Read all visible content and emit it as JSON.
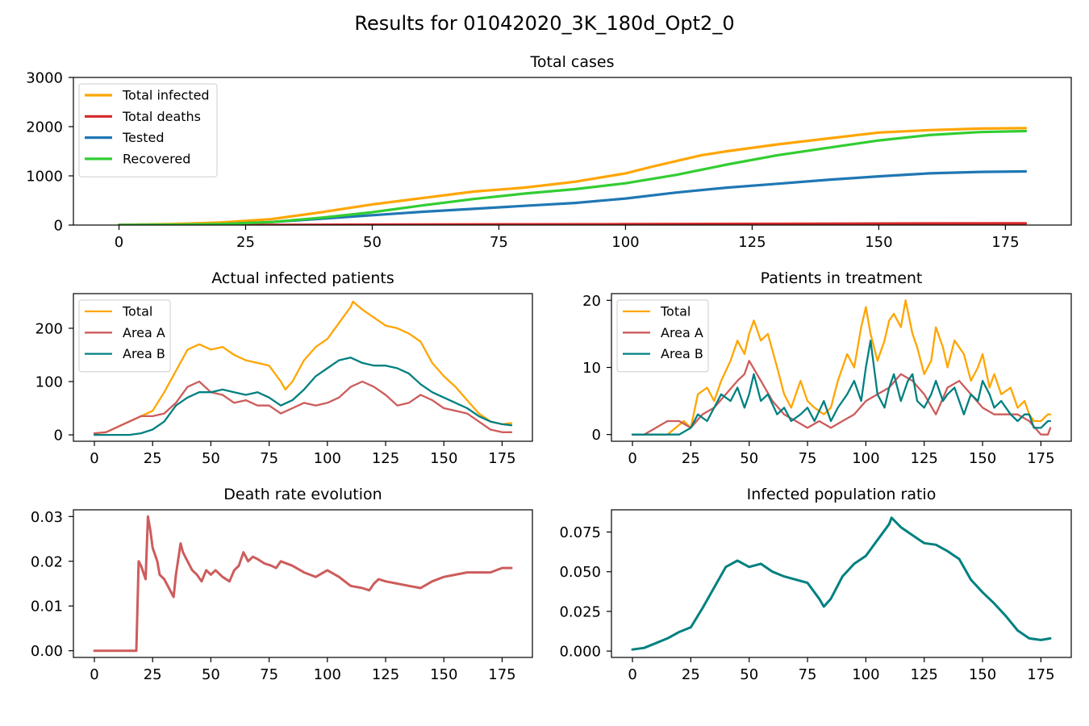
{
  "figure": {
    "title": "Results for 01042020_3K_180d_Opt2_0"
  },
  "chart_data": [
    {
      "type": "line",
      "title": "Total cases",
      "xlabel": "",
      "ylabel": "",
      "xlim": [
        -9,
        188
      ],
      "ylim": [
        0,
        3000
      ],
      "xticks": [
        0,
        25,
        50,
        75,
        100,
        125,
        150,
        175
      ],
      "yticks": [
        0,
        1000,
        2000,
        3000
      ],
      "legend_position": "top-left",
      "grid": false,
      "series": [
        {
          "name": "Total infected",
          "color": "#ffa500",
          "x": [
            0,
            10,
            20,
            30,
            40,
            50,
            60,
            70,
            80,
            90,
            100,
            105,
            110,
            115,
            120,
            130,
            140,
            150,
            160,
            170,
            179
          ],
          "y": [
            5,
            20,
            50,
            120,
            260,
            420,
            550,
            680,
            760,
            880,
            1050,
            1180,
            1300,
            1420,
            1500,
            1640,
            1760,
            1880,
            1930,
            1960,
            1970
          ]
        },
        {
          "name": "Total deaths",
          "color": "#d62728",
          "x": [
            0,
            20,
            30,
            50,
            80,
            100,
            130,
            160,
            179
          ],
          "y": [
            0,
            1,
            3,
            8,
            14,
            18,
            25,
            32,
            35
          ]
        },
        {
          "name": "Tested",
          "color": "#1f77b4",
          "x": [
            0,
            10,
            20,
            30,
            40,
            50,
            60,
            70,
            80,
            90,
            100,
            110,
            120,
            130,
            140,
            150,
            160,
            170,
            179
          ],
          "y": [
            0,
            5,
            20,
            60,
            130,
            200,
            270,
            330,
            390,
            450,
            540,
            660,
            760,
            840,
            920,
            990,
            1050,
            1080,
            1090
          ]
        },
        {
          "name": "Recovered",
          "color": "#32cd32",
          "x": [
            0,
            10,
            20,
            30,
            40,
            50,
            60,
            70,
            80,
            90,
            100,
            110,
            120,
            130,
            140,
            150,
            160,
            170,
            179
          ],
          "y": [
            0,
            5,
            20,
            60,
            150,
            260,
            400,
            530,
            640,
            730,
            850,
            1020,
            1230,
            1420,
            1570,
            1720,
            1830,
            1890,
            1910
          ]
        }
      ]
    },
    {
      "type": "line",
      "title": "Actual infected patients",
      "xlabel": "",
      "ylabel": "",
      "xlim": [
        -9,
        188
      ],
      "ylim": [
        -12,
        265
      ],
      "xticks": [
        0,
        25,
        50,
        75,
        100,
        125,
        150,
        175
      ],
      "yticks": [
        0,
        100,
        200
      ],
      "legend_position": "top-left",
      "grid": false,
      "series": [
        {
          "name": "Total",
          "color": "#ffa500",
          "x": [
            0,
            5,
            10,
            15,
            20,
            25,
            30,
            35,
            40,
            45,
            50,
            55,
            60,
            65,
            70,
            75,
            80,
            82,
            85,
            90,
            95,
            100,
            105,
            110,
            111,
            115,
            120,
            125,
            130,
            135,
            140,
            145,
            150,
            155,
            160,
            165,
            170,
            175,
            179
          ],
          "y": [
            3,
            5,
            15,
            25,
            35,
            45,
            80,
            120,
            160,
            170,
            160,
            165,
            150,
            140,
            135,
            130,
            100,
            85,
            100,
            140,
            165,
            180,
            210,
            240,
            250,
            235,
            220,
            205,
            200,
            190,
            175,
            135,
            110,
            90,
            65,
            40,
            25,
            20,
            22
          ]
        },
        {
          "name": "Area A",
          "color": "#cd5c5c",
          "x": [
            0,
            5,
            10,
            15,
            20,
            25,
            30,
            35,
            40,
            45,
            50,
            55,
            60,
            65,
            70,
            75,
            80,
            85,
            90,
            95,
            100,
            105,
            110,
            115,
            120,
            125,
            130,
            135,
            140,
            145,
            150,
            155,
            160,
            165,
            170,
            175,
            179
          ],
          "y": [
            3,
            5,
            15,
            25,
            35,
            35,
            40,
            60,
            90,
            100,
            80,
            75,
            60,
            65,
            55,
            55,
            40,
            50,
            60,
            55,
            60,
            70,
            90,
            100,
            90,
            75,
            55,
            60,
            75,
            65,
            50,
            45,
            40,
            25,
            10,
            5,
            5
          ]
        },
        {
          "name": "Area B",
          "color": "#008080",
          "x": [
            0,
            5,
            10,
            15,
            20,
            25,
            30,
            35,
            40,
            45,
            50,
            55,
            60,
            65,
            70,
            75,
            80,
            85,
            90,
            95,
            100,
            105,
            110,
            115,
            120,
            125,
            130,
            135,
            140,
            145,
            150,
            155,
            160,
            165,
            170,
            175,
            179
          ],
          "y": [
            0,
            0,
            0,
            0,
            3,
            10,
            25,
            55,
            70,
            80,
            80,
            85,
            80,
            75,
            80,
            70,
            55,
            65,
            85,
            110,
            125,
            140,
            145,
            135,
            130,
            130,
            125,
            115,
            95,
            80,
            70,
            60,
            50,
            35,
            25,
            20,
            18
          ]
        }
      ]
    },
    {
      "type": "line",
      "title": "Patients in treatment",
      "xlabel": "",
      "ylabel": "",
      "xlim": [
        -9,
        188
      ],
      "ylim": [
        -1,
        21
      ],
      "xticks": [
        0,
        25,
        50,
        75,
        100,
        125,
        150,
        175
      ],
      "yticks": [
        0,
        10,
        20
      ],
      "legend_position": "top-left",
      "grid": false,
      "series": [
        {
          "name": "Total",
          "color": "#ffa500",
          "x": [
            0,
            15,
            22,
            25,
            28,
            32,
            35,
            38,
            42,
            45,
            48,
            50,
            52,
            55,
            58,
            62,
            65,
            68,
            72,
            75,
            78,
            82,
            85,
            88,
            92,
            95,
            98,
            100,
            102,
            105,
            108,
            110,
            112,
            115,
            117,
            120,
            122,
            125,
            128,
            130,
            133,
            135,
            138,
            142,
            145,
            148,
            150,
            153,
            155,
            158,
            162,
            165,
            168,
            170,
            172,
            175,
            178,
            179
          ],
          "y": [
            0,
            0,
            2,
            1,
            6,
            7,
            5,
            8,
            11,
            14,
            12,
            15,
            17,
            14,
            15,
            10,
            6,
            4,
            8,
            5,
            4,
            3,
            4,
            8,
            12,
            10,
            16,
            19,
            15,
            11,
            14,
            17,
            18,
            16,
            20,
            15,
            13,
            9,
            11,
            16,
            13,
            10,
            14,
            12,
            8,
            10,
            12,
            7,
            9,
            6,
            7,
            4,
            5,
            3,
            2,
            2,
            3,
            3
          ]
        },
        {
          "name": "Area A",
          "color": "#cd5c5c",
          "x": [
            0,
            5,
            10,
            15,
            20,
            25,
            30,
            35,
            40,
            45,
            48,
            50,
            55,
            60,
            65,
            70,
            75,
            80,
            85,
            90,
            95,
            100,
            105,
            110,
            115,
            120,
            125,
            130,
            135,
            140,
            145,
            150,
            155,
            160,
            165,
            170,
            175,
            178,
            179
          ],
          "y": [
            0,
            0,
            1,
            2,
            2,
            1,
            3,
            4,
            6,
            8,
            9,
            11,
            8,
            5,
            3,
            2,
            1,
            2,
            1,
            2,
            3,
            5,
            6,
            7,
            9,
            8,
            6,
            3,
            7,
            8,
            6,
            4,
            3,
            3,
            3,
            2,
            0,
            0,
            1
          ]
        },
        {
          "name": "Area B",
          "color": "#008080",
          "x": [
            0,
            10,
            20,
            25,
            28,
            32,
            35,
            38,
            42,
            45,
            48,
            50,
            52,
            55,
            58,
            62,
            65,
            68,
            72,
            75,
            78,
            82,
            85,
            88,
            92,
            95,
            98,
            100,
            102,
            105,
            108,
            110,
            112,
            115,
            118,
            120,
            122,
            125,
            128,
            130,
            133,
            135,
            138,
            142,
            145,
            148,
            150,
            153,
            155,
            158,
            162,
            165,
            168,
            170,
            172,
            175,
            178,
            179
          ],
          "y": [
            0,
            0,
            0,
            1,
            3,
            2,
            4,
            6,
            5,
            7,
            4,
            6,
            9,
            5,
            6,
            3,
            4,
            2,
            3,
            4,
            2,
            5,
            2,
            4,
            6,
            8,
            5,
            10,
            14,
            6,
            4,
            7,
            9,
            5,
            8,
            9,
            5,
            4,
            6,
            8,
            5,
            6,
            7,
            3,
            6,
            5,
            8,
            6,
            4,
            5,
            3,
            2,
            3,
            3,
            1,
            1,
            2,
            2
          ]
        }
      ]
    },
    {
      "type": "line",
      "title": "Death rate evolution",
      "xlabel": "",
      "ylabel": "",
      "xlim": [
        -9,
        188
      ],
      "ylim": [
        -0.0015,
        0.0315
      ],
      "xticks": [
        0,
        25,
        50,
        75,
        100,
        125,
        150,
        175
      ],
      "yticks": [
        0.0,
        0.01,
        0.02,
        0.03
      ],
      "ytick_labels": [
        "0.00",
        "0.01",
        "0.02",
        "0.03"
      ],
      "grid": false,
      "series": [
        {
          "name": "",
          "color": "#cd5c5c",
          "x": [
            0,
            18,
            19,
            20,
            22,
            23,
            24,
            25,
            27,
            28,
            30,
            32,
            34,
            35,
            37,
            38,
            40,
            42,
            44,
            46,
            48,
            50,
            52,
            55,
            58,
            60,
            62,
            64,
            66,
            68,
            70,
            73,
            76,
            78,
            80,
            85,
            90,
            95,
            100,
            105,
            110,
            115,
            118,
            120,
            122,
            125,
            130,
            135,
            140,
            145,
            150,
            155,
            160,
            165,
            170,
            175,
            179
          ],
          "y": [
            0,
            0,
            0.02,
            0.019,
            0.016,
            0.03,
            0.027,
            0.023,
            0.02,
            0.017,
            0.016,
            0.014,
            0.012,
            0.017,
            0.024,
            0.022,
            0.02,
            0.018,
            0.017,
            0.0155,
            0.018,
            0.017,
            0.018,
            0.0165,
            0.0155,
            0.018,
            0.019,
            0.022,
            0.02,
            0.021,
            0.0205,
            0.0195,
            0.019,
            0.0185,
            0.02,
            0.019,
            0.0175,
            0.0165,
            0.018,
            0.0165,
            0.0145,
            0.014,
            0.0135,
            0.015,
            0.016,
            0.0155,
            0.015,
            0.0145,
            0.014,
            0.0155,
            0.0165,
            0.017,
            0.0175,
            0.0175,
            0.0175,
            0.0185,
            0.0185
          ]
        }
      ]
    },
    {
      "type": "line",
      "title": "Infected population ratio",
      "xlabel": "",
      "ylabel": "",
      "xlim": [
        -9,
        188
      ],
      "ylim": [
        -0.004,
        0.089
      ],
      "xticks": [
        0,
        25,
        50,
        75,
        100,
        125,
        150,
        175
      ],
      "yticks": [
        0.0,
        0.025,
        0.05,
        0.075
      ],
      "ytick_labels": [
        "0.000",
        "0.025",
        "0.050",
        "0.075"
      ],
      "grid": false,
      "series": [
        {
          "name": "",
          "color": "#008080",
          "x": [
            0,
            5,
            10,
            15,
            20,
            25,
            30,
            35,
            40,
            45,
            50,
            55,
            60,
            65,
            70,
            75,
            80,
            82,
            85,
            90,
            95,
            100,
            105,
            110,
            111,
            115,
            120,
            125,
            130,
            135,
            140,
            145,
            150,
            155,
            160,
            165,
            170,
            175,
            179
          ],
          "y": [
            0.001,
            0.002,
            0.005,
            0.008,
            0.012,
            0.015,
            0.027,
            0.04,
            0.053,
            0.057,
            0.053,
            0.055,
            0.05,
            0.047,
            0.045,
            0.043,
            0.033,
            0.028,
            0.033,
            0.047,
            0.055,
            0.06,
            0.07,
            0.08,
            0.084,
            0.078,
            0.073,
            0.068,
            0.067,
            0.063,
            0.058,
            0.045,
            0.037,
            0.03,
            0.022,
            0.013,
            0.008,
            0.007,
            0.008
          ]
        }
      ]
    }
  ]
}
